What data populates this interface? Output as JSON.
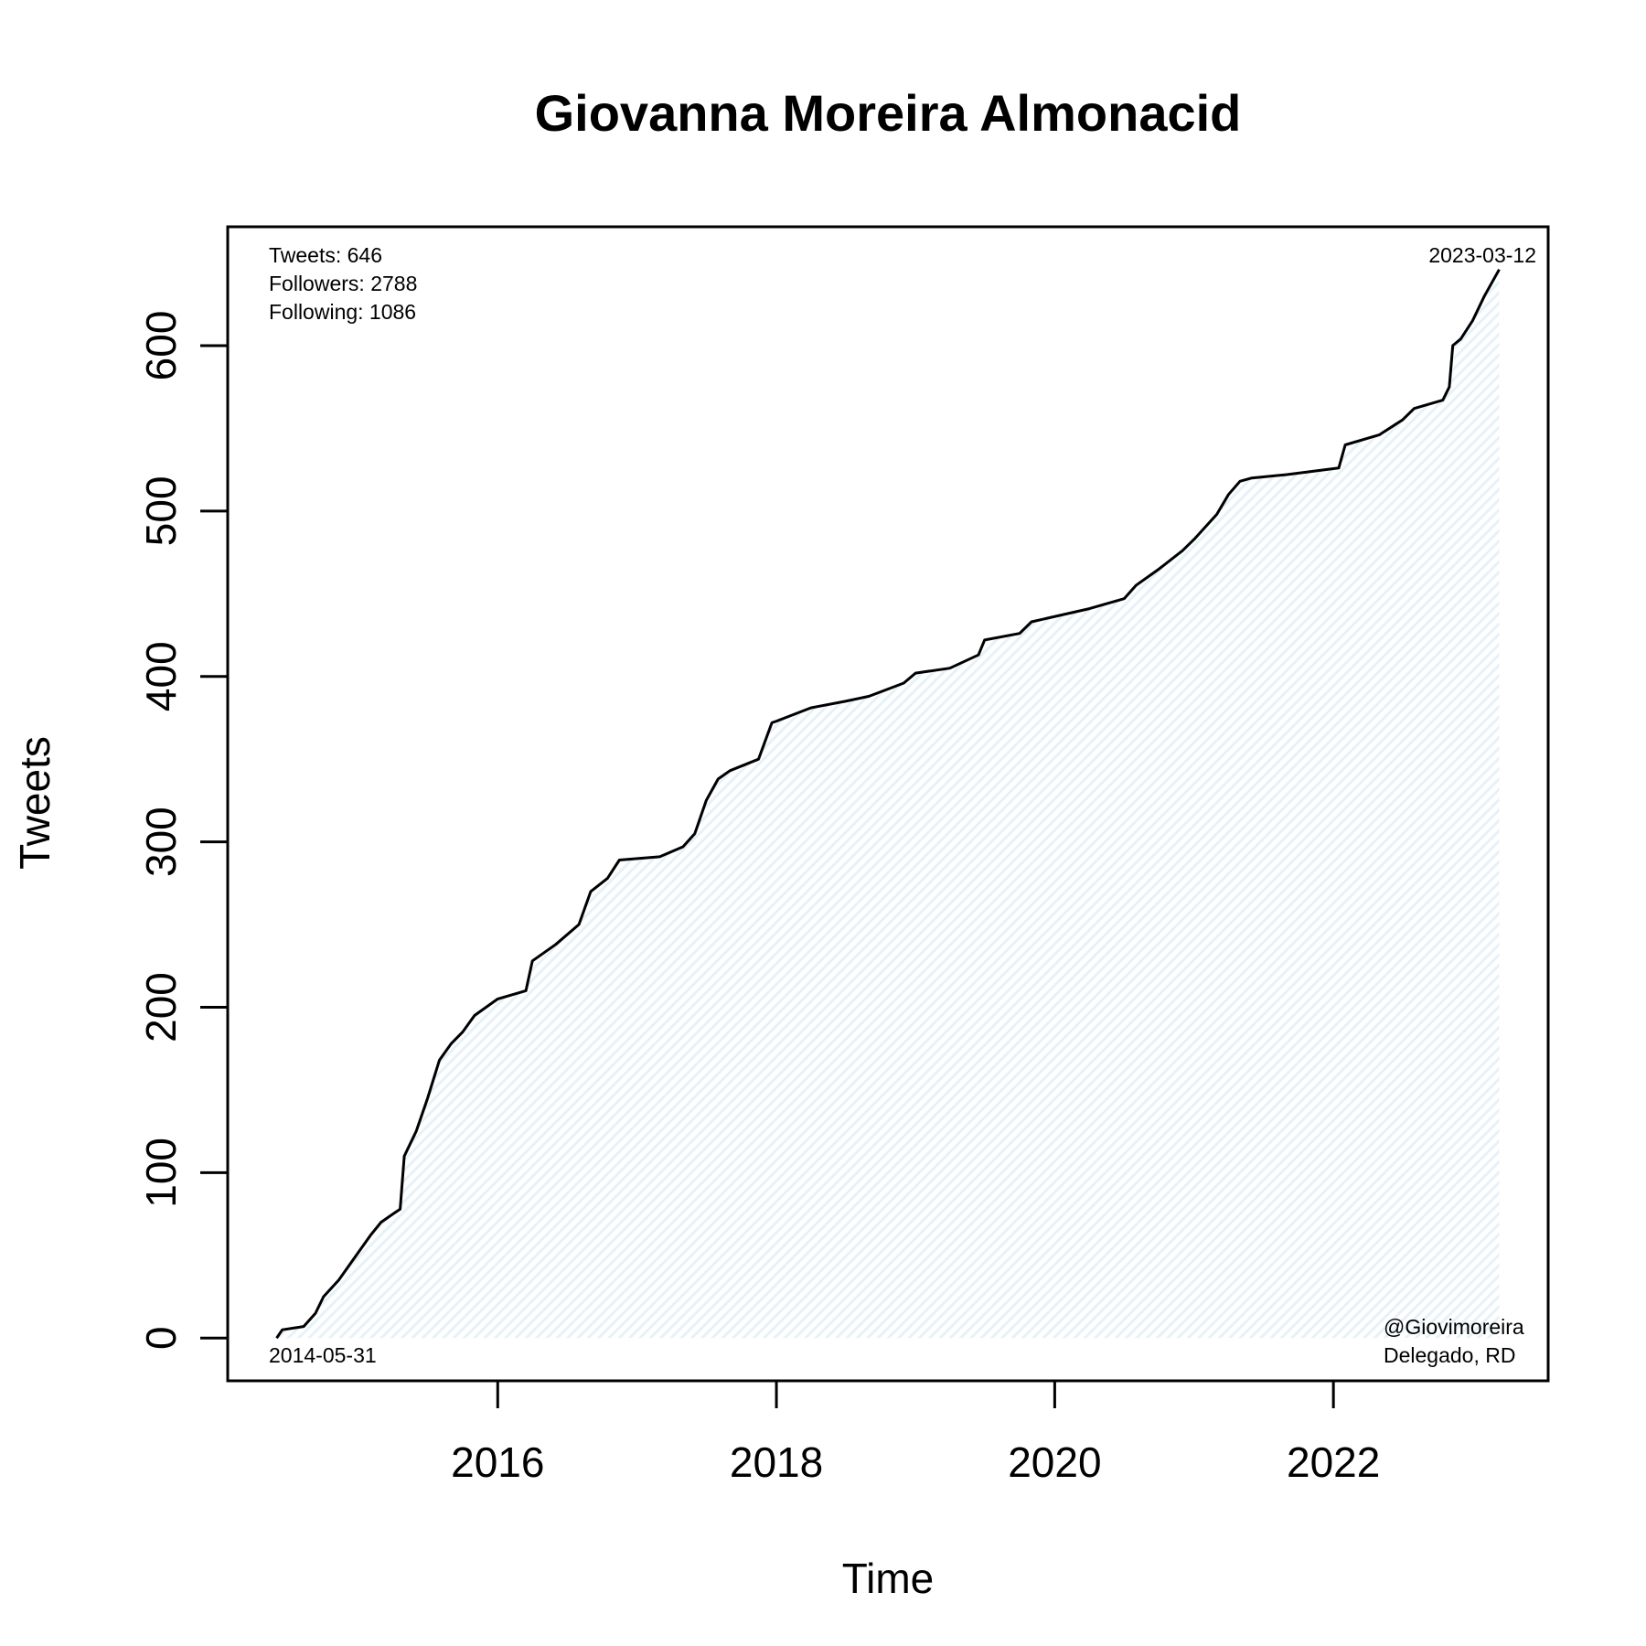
{
  "chart_data": {
    "type": "line",
    "title": "Giovanna Moreira Almonacid",
    "xlabel": "Time",
    "ylabel": "Tweets",
    "xlim": [
      "2014-05-31",
      "2023-03-12"
    ],
    "ylim": [
      0,
      646
    ],
    "x_ticks": [
      "2016-01-01",
      "2018-01-01",
      "2020-01-01",
      "2022-01-01"
    ],
    "x_tick_labels": [
      "2016",
      "2018",
      "2020",
      "2022"
    ],
    "y_ticks": [
      0,
      100,
      200,
      300,
      400,
      500,
      600
    ],
    "y_tick_labels": [
      "0",
      "100",
      "200",
      "300",
      "400",
      "500",
      "600"
    ],
    "grid": false,
    "fill": {
      "color": "#e6f2f7",
      "pattern": "diagonal-hatch"
    },
    "line_color": "#000000",
    "annotations": {
      "stats": [
        "Tweets: 646",
        "Followers: 2788",
        "Following: 1086"
      ],
      "start_date": "2014-05-31",
      "end_date": "2023-03-12",
      "handle": "@Giovimoreira",
      "location": "Delegado, RD"
    },
    "series": [
      {
        "x": [
          "2014-05-31",
          "2014-06-15",
          "2014-08-10",
          "2014-09-10",
          "2014-10-01",
          "2014-11-10",
          "2015-01-01",
          "2015-02-01",
          "2015-03-01",
          "2015-04-01",
          "2015-04-20",
          "2015-05-01",
          "2015-06-01",
          "2015-07-01",
          "2015-08-01",
          "2015-09-01",
          "2015-10-01",
          "2015-11-01",
          "2016-01-01",
          "2016-03-15",
          "2016-04-01",
          "2016-06-01",
          "2016-08-01",
          "2016-09-01",
          "2016-10-15",
          "2016-11-15",
          "2017-03-01",
          "2017-05-01",
          "2017-06-01",
          "2017-07-01",
          "2017-08-01",
          "2017-09-01",
          "2017-11-15",
          "2017-12-20",
          "2018-01-01",
          "2018-04-01",
          "2018-07-01",
          "2018-09-01",
          "2018-12-01",
          "2019-01-01",
          "2019-04-01",
          "2019-06-15",
          "2019-07-01",
          "2019-10-01",
          "2019-11-01",
          "2020-04-01",
          "2020-07-01",
          "2020-08-01",
          "2020-10-01",
          "2020-12-01",
          "2021-01-01",
          "2021-03-01",
          "2021-04-01",
          "2021-05-01",
          "2021-06-01",
          "2021-09-01",
          "2022-01-15",
          "2022-02-01",
          "2022-05-01",
          "2022-07-01",
          "2022-08-01",
          "2022-10-15",
          "2022-11-01",
          "2022-11-10",
          "2022-12-01",
          "2023-01-01",
          "2023-02-01",
          "2023-03-12"
        ],
        "y": [
          0,
          5,
          7,
          15,
          25,
          35,
          52,
          62,
          70,
          75,
          78,
          110,
          125,
          145,
          168,
          178,
          185,
          195,
          205,
          210,
          228,
          238,
          250,
          270,
          278,
          289,
          291,
          297,
          305,
          325,
          338,
          343,
          350,
          372,
          373,
          381,
          385,
          388,
          396,
          402,
          405,
          413,
          422,
          426,
          433,
          441,
          447,
          455,
          465,
          476,
          483,
          498,
          510,
          518,
          520,
          522,
          526,
          540,
          546,
          555,
          562,
          567,
          575,
          600,
          604,
          615,
          630,
          646
        ]
      }
    ]
  }
}
